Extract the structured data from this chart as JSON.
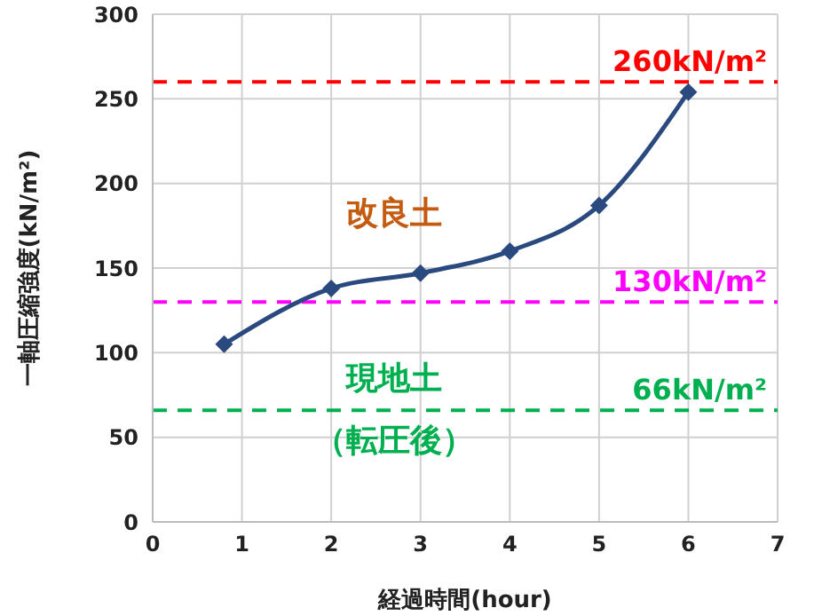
{
  "chart_data": {
    "type": "line",
    "xlabel": "経過時間(hour)",
    "ylabel": "一軸圧縮強度(kN/m²)",
    "x": [
      0.8,
      2,
      3,
      4,
      5,
      6
    ],
    "series": [
      {
        "color": "#2a4a7f",
        "values": [
          105,
          138,
          147,
          160,
          187,
          254
        ]
      }
    ],
    "xlim": [
      0,
      7
    ],
    "xticks": [
      0,
      1,
      2,
      3,
      4,
      5,
      6,
      7
    ],
    "ylim": [
      0,
      300
    ],
    "yticks": [
      0,
      50,
      100,
      150,
      200,
      250,
      300
    ],
    "grid": true,
    "marker": "diamond",
    "line_style": "solid",
    "ref_lines": [
      {
        "axis": "y",
        "value": 260,
        "label": "260kN/m²",
        "color": "#ff0000",
        "line_style": "dashed"
      },
      {
        "axis": "y",
        "value": 130,
        "label": "130kN/m²",
        "color": "#ff00ff",
        "line_style": "dashed"
      },
      {
        "axis": "y",
        "value": 66,
        "label": "66kN/m²",
        "color": "#00b050",
        "line_style": "dashed"
      }
    ],
    "annotations": [
      "改良土",
      "現地土",
      "（転圧後）"
    ]
  }
}
